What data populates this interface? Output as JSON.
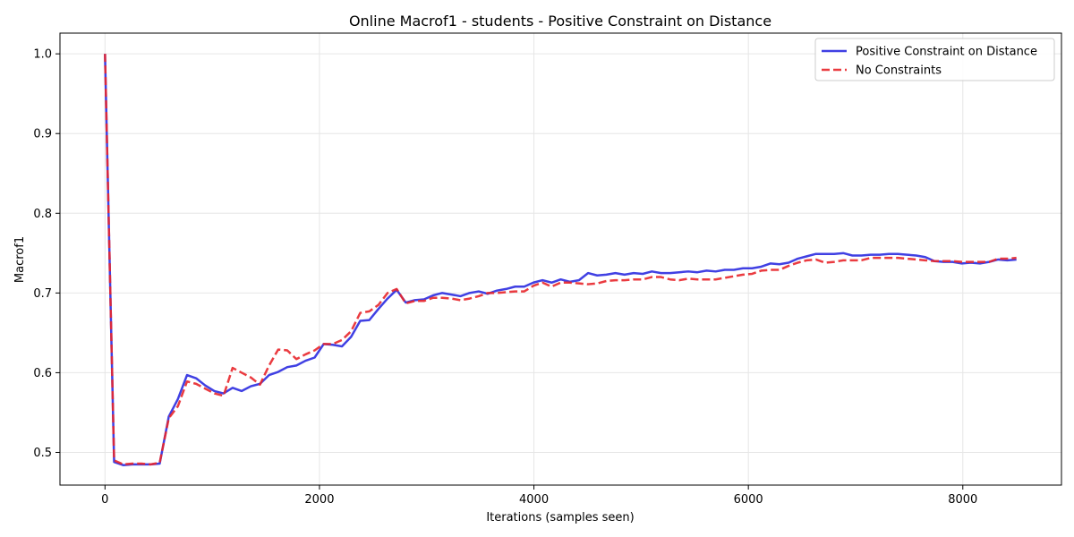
{
  "chart_data": {
    "type": "line",
    "title": "Online Macrof1 - students - Positive Constraint on Distance",
    "xlabel": "Iterations (samples seen)",
    "ylabel": "Macrof1",
    "xlim": [
      -420,
      8920
    ],
    "ylim": [
      0.459,
      1.026
    ],
    "xticks": [
      0,
      2000,
      4000,
      6000,
      8000
    ],
    "xtick_labels": [
      "0",
      "2000",
      "4000",
      "6000",
      "8000"
    ],
    "yticks": [
      0.5,
      0.6,
      0.7,
      0.8,
      0.9,
      1.0
    ],
    "ytick_labels": [
      "0.5",
      "0.6",
      "0.7",
      "0.8",
      "0.9",
      "1.0"
    ],
    "grid": true,
    "legend_position": "top-right",
    "series": [
      {
        "name": "Positive Constraint on Distance",
        "color": "#2b2be0",
        "style": "solid",
        "x": [
          0,
          85,
          170,
          255,
          340,
          425,
          510,
          595,
          680,
          765,
          850,
          935,
          1020,
          1105,
          1190,
          1275,
          1360,
          1445,
          1530,
          1615,
          1700,
          1785,
          1870,
          1955,
          2040,
          2125,
          2210,
          2295,
          2380,
          2465,
          2550,
          2635,
          2720,
          2805,
          2890,
          2975,
          3060,
          3145,
          3230,
          3315,
          3400,
          3485,
          3570,
          3655,
          3740,
          3825,
          3910,
          3995,
          4080,
          4165,
          4250,
          4335,
          4420,
          4505,
          4590,
          4675,
          4760,
          4845,
          4930,
          5015,
          5100,
          5185,
          5270,
          5355,
          5440,
          5525,
          5610,
          5695,
          5780,
          5865,
          5950,
          6035,
          6120,
          6205,
          6290,
          6375,
          6460,
          6545,
          6630,
          6715,
          6800,
          6885,
          6970,
          7055,
          7140,
          7225,
          7310,
          7395,
          7480,
          7565,
          7650,
          7735,
          7820,
          7905,
          7990,
          8075,
          8160,
          8245,
          8330,
          8415,
          8500
        ],
        "values": [
          1.0,
          0.488,
          0.484,
          0.485,
          0.485,
          0.485,
          0.486,
          0.545,
          0.567,
          0.597,
          0.593,
          0.584,
          0.577,
          0.574,
          0.581,
          0.577,
          0.583,
          0.586,
          0.597,
          0.601,
          0.607,
          0.609,
          0.615,
          0.619,
          0.636,
          0.635,
          0.633,
          0.645,
          0.665,
          0.666,
          0.68,
          0.693,
          0.704,
          0.688,
          0.691,
          0.692,
          0.697,
          0.7,
          0.698,
          0.696,
          0.7,
          0.702,
          0.699,
          0.703,
          0.705,
          0.708,
          0.708,
          0.713,
          0.716,
          0.713,
          0.717,
          0.714,
          0.716,
          0.725,
          0.722,
          0.723,
          0.725,
          0.723,
          0.725,
          0.724,
          0.727,
          0.725,
          0.725,
          0.726,
          0.727,
          0.726,
          0.728,
          0.727,
          0.729,
          0.729,
          0.731,
          0.731,
          0.733,
          0.737,
          0.736,
          0.738,
          0.743,
          0.746,
          0.749,
          0.749,
          0.749,
          0.75,
          0.747,
          0.747,
          0.748,
          0.748,
          0.749,
          0.749,
          0.748,
          0.747,
          0.745,
          0.74,
          0.739,
          0.739,
          0.737,
          0.738,
          0.737,
          0.739,
          0.742,
          0.741,
          0.742
        ]
      },
      {
        "name": "No Constraints",
        "color": "#e8262b",
        "style": "dashed",
        "x": [
          0,
          85,
          170,
          255,
          340,
          425,
          510,
          595,
          680,
          765,
          850,
          935,
          1020,
          1105,
          1190,
          1275,
          1360,
          1445,
          1530,
          1615,
          1700,
          1785,
          1870,
          1955,
          2040,
          2125,
          2210,
          2295,
          2380,
          2465,
          2550,
          2635,
          2720,
          2805,
          2890,
          2975,
          3060,
          3145,
          3230,
          3315,
          3400,
          3485,
          3570,
          3655,
          3740,
          3825,
          3910,
          3995,
          4080,
          4165,
          4250,
          4335,
          4420,
          4505,
          4590,
          4675,
          4760,
          4845,
          4930,
          5015,
          5100,
          5185,
          5270,
          5355,
          5440,
          5525,
          5610,
          5695,
          5780,
          5865,
          5950,
          6035,
          6120,
          6205,
          6290,
          6375,
          6460,
          6545,
          6630,
          6715,
          6800,
          6885,
          6970,
          7055,
          7140,
          7225,
          7310,
          7395,
          7480,
          7565,
          7650,
          7735,
          7820,
          7905,
          7990,
          8075,
          8160,
          8245,
          8330,
          8415,
          8500
        ],
        "values": [
          1.0,
          0.49,
          0.485,
          0.486,
          0.486,
          0.485,
          0.487,
          0.543,
          0.558,
          0.589,
          0.586,
          0.58,
          0.574,
          0.571,
          0.606,
          0.6,
          0.594,
          0.585,
          0.609,
          0.629,
          0.628,
          0.617,
          0.623,
          0.628,
          0.636,
          0.636,
          0.641,
          0.652,
          0.675,
          0.677,
          0.685,
          0.7,
          0.705,
          0.687,
          0.69,
          0.69,
          0.694,
          0.694,
          0.693,
          0.691,
          0.693,
          0.696,
          0.7,
          0.7,
          0.701,
          0.702,
          0.702,
          0.709,
          0.713,
          0.708,
          0.713,
          0.713,
          0.712,
          0.711,
          0.712,
          0.715,
          0.716,
          0.716,
          0.717,
          0.717,
          0.72,
          0.72,
          0.717,
          0.716,
          0.718,
          0.717,
          0.717,
          0.717,
          0.719,
          0.721,
          0.723,
          0.724,
          0.728,
          0.729,
          0.729,
          0.734,
          0.738,
          0.741,
          0.742,
          0.738,
          0.739,
          0.741,
          0.741,
          0.741,
          0.744,
          0.744,
          0.744,
          0.744,
          0.743,
          0.742,
          0.741,
          0.74,
          0.74,
          0.74,
          0.739,
          0.739,
          0.739,
          0.739,
          0.743,
          0.743,
          0.744
        ]
      }
    ]
  }
}
